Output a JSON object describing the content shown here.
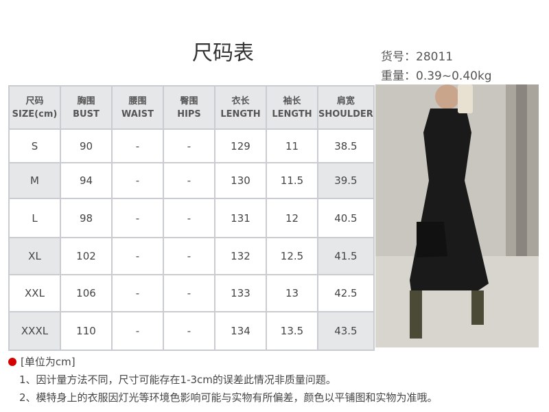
{
  "title": "尺码表",
  "item_no": "货号：28011",
  "weight": "重量：0.39~0.40kg",
  "table": {
    "headers": [
      [
        "尺码",
        "SIZE(cm)"
      ],
      [
        "胸围",
        "BUST"
      ],
      [
        "腰围",
        "WAIST"
      ],
      [
        "臀围",
        "HIPS"
      ],
      [
        "衣长",
        "LENGTH"
      ],
      [
        "袖长",
        "LENGTH"
      ],
      [
        "肩宽",
        "SHOULDER"
      ]
    ],
    "rows": [
      [
        "S",
        "90",
        "-",
        "-",
        "129",
        "11",
        "38.5"
      ],
      [
        "M",
        "94",
        "-",
        "-",
        "130",
        "11.5",
        "39.5"
      ],
      [
        "L",
        "98",
        "-",
        "-",
        "131",
        "12",
        "40.5"
      ],
      [
        "XL",
        "102",
        "-",
        "-",
        "132",
        "12.5",
        "41.5"
      ],
      [
        "XXL",
        "106",
        "-",
        "-",
        "133",
        "13",
        "42.5"
      ],
      [
        "XXXL",
        "110",
        "-",
        "-",
        "134",
        "13.5",
        "43.5"
      ]
    ]
  },
  "notes": {
    "unit": "[单位为cm]",
    "lines": [
      "1、因计量方法不同，尺寸可能存在1-3cm的误差此情况非质量问题。",
      "2、模特身上的衣服因灯光等环境色影响可能与实物有所偏差，颜色以平铺图和实物为准哦。"
    ]
  },
  "colors": {
    "accent": "#d40000",
    "header_bg": "#e6e7e9",
    "border": "#c8cbcf"
  }
}
